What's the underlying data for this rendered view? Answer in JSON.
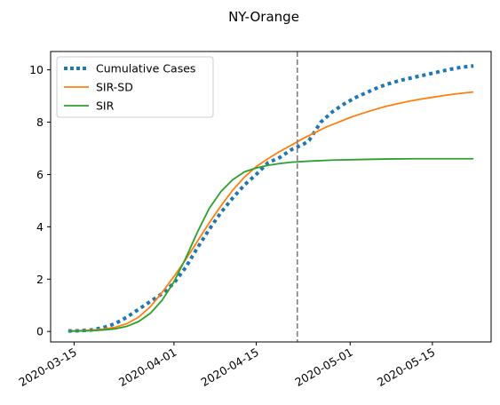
{
  "chart_data": {
    "type": "line",
    "title": "NY-Orange",
    "xlabel": "",
    "ylabel": "",
    "x_axis_type": "date",
    "xlim": [
      "2020-03-11",
      "2020-05-25"
    ],
    "ylim": [
      -0.4,
      10.7
    ],
    "x_ticks": [
      "2020-03-15",
      "2020-04-01",
      "2020-04-15",
      "2020-05-01",
      "2020-05-15"
    ],
    "y_ticks": [
      0,
      2,
      4,
      6,
      8,
      10
    ],
    "grid": false,
    "legend_position": "top-left",
    "vline": {
      "x": "2020-04-22",
      "color": "#7f7f7f",
      "style": "dashed"
    },
    "series": [
      {
        "name": "Cumulative Cases",
        "color": "#1f77b4",
        "style": "dotted",
        "points": [
          [
            "2020-03-14",
            0.02
          ],
          [
            "2020-03-16",
            0.03
          ],
          [
            "2020-03-18",
            0.06
          ],
          [
            "2020-03-20",
            0.15
          ],
          [
            "2020-03-22",
            0.3
          ],
          [
            "2020-03-24",
            0.55
          ],
          [
            "2020-03-26",
            0.85
          ],
          [
            "2020-03-28",
            1.15
          ],
          [
            "2020-03-30",
            1.45
          ],
          [
            "2020-04-01",
            1.85
          ],
          [
            "2020-04-03",
            2.45
          ],
          [
            "2020-04-05",
            3.2
          ],
          [
            "2020-04-07",
            3.9
          ],
          [
            "2020-04-09",
            4.55
          ],
          [
            "2020-04-11",
            5.1
          ],
          [
            "2020-04-13",
            5.6
          ],
          [
            "2020-04-15",
            6.0
          ],
          [
            "2020-04-17",
            6.45
          ],
          [
            "2020-04-19",
            6.65
          ],
          [
            "2020-04-21",
            6.95
          ],
          [
            "2020-04-23",
            7.15
          ],
          [
            "2020-04-24",
            7.3
          ],
          [
            "2020-04-26",
            8.0
          ],
          [
            "2020-04-28",
            8.4
          ],
          [
            "2020-04-30",
            8.7
          ],
          [
            "2020-05-02",
            8.95
          ],
          [
            "2020-05-04",
            9.15
          ],
          [
            "2020-05-06",
            9.35
          ],
          [
            "2020-05-08",
            9.5
          ],
          [
            "2020-05-10",
            9.62
          ],
          [
            "2020-05-12",
            9.72
          ],
          [
            "2020-05-14",
            9.82
          ],
          [
            "2020-05-16",
            9.92
          ],
          [
            "2020-05-18",
            10.02
          ],
          [
            "2020-05-20",
            10.1
          ],
          [
            "2020-05-22",
            10.15
          ]
        ]
      },
      {
        "name": "SIR-SD",
        "color": "#ff7f0e",
        "style": "solid",
        "points": [
          [
            "2020-03-14",
            0.02
          ],
          [
            "2020-03-16",
            0.03
          ],
          [
            "2020-03-18",
            0.05
          ],
          [
            "2020-03-20",
            0.09
          ],
          [
            "2020-03-22",
            0.16
          ],
          [
            "2020-03-24",
            0.3
          ],
          [
            "2020-03-26",
            0.55
          ],
          [
            "2020-03-28",
            0.95
          ],
          [
            "2020-03-30",
            1.5
          ],
          [
            "2020-04-01",
            2.1
          ],
          [
            "2020-04-03",
            2.75
          ],
          [
            "2020-04-05",
            3.45
          ],
          [
            "2020-04-07",
            4.15
          ],
          [
            "2020-04-09",
            4.8
          ],
          [
            "2020-04-11",
            5.4
          ],
          [
            "2020-04-13",
            5.9
          ],
          [
            "2020-04-15",
            6.3
          ],
          [
            "2020-04-17",
            6.6
          ],
          [
            "2020-04-19",
            6.88
          ],
          [
            "2020-04-21",
            7.12
          ],
          [
            "2020-04-23",
            7.38
          ],
          [
            "2020-04-25",
            7.6
          ],
          [
            "2020-04-27",
            7.82
          ],
          [
            "2020-04-29",
            8.0
          ],
          [
            "2020-05-01",
            8.18
          ],
          [
            "2020-05-03",
            8.33
          ],
          [
            "2020-05-05",
            8.47
          ],
          [
            "2020-05-07",
            8.6
          ],
          [
            "2020-05-09",
            8.7
          ],
          [
            "2020-05-11",
            8.8
          ],
          [
            "2020-05-13",
            8.88
          ],
          [
            "2020-05-15",
            8.95
          ],
          [
            "2020-05-17",
            9.02
          ],
          [
            "2020-05-19",
            9.08
          ],
          [
            "2020-05-21",
            9.13
          ],
          [
            "2020-05-22",
            9.15
          ]
        ]
      },
      {
        "name": "SIR",
        "color": "#2ca02c",
        "style": "solid",
        "points": [
          [
            "2020-03-14",
            0.01
          ],
          [
            "2020-03-16",
            0.02
          ],
          [
            "2020-03-18",
            0.03
          ],
          [
            "2020-03-20",
            0.06
          ],
          [
            "2020-03-22",
            0.1
          ],
          [
            "2020-03-24",
            0.2
          ],
          [
            "2020-03-26",
            0.38
          ],
          [
            "2020-03-28",
            0.7
          ],
          [
            "2020-03-30",
            1.2
          ],
          [
            "2020-04-01",
            1.9
          ],
          [
            "2020-04-03",
            2.8
          ],
          [
            "2020-04-05",
            3.8
          ],
          [
            "2020-04-07",
            4.7
          ],
          [
            "2020-04-09",
            5.35
          ],
          [
            "2020-04-11",
            5.8
          ],
          [
            "2020-04-13",
            6.1
          ],
          [
            "2020-04-15",
            6.25
          ],
          [
            "2020-04-17",
            6.35
          ],
          [
            "2020-04-19",
            6.42
          ],
          [
            "2020-04-21",
            6.47
          ],
          [
            "2020-04-24",
            6.51
          ],
          [
            "2020-04-28",
            6.55
          ],
          [
            "2020-05-02",
            6.57
          ],
          [
            "2020-05-07",
            6.59
          ],
          [
            "2020-05-12",
            6.6
          ],
          [
            "2020-05-17",
            6.6
          ],
          [
            "2020-05-22",
            6.6
          ]
        ]
      }
    ]
  }
}
